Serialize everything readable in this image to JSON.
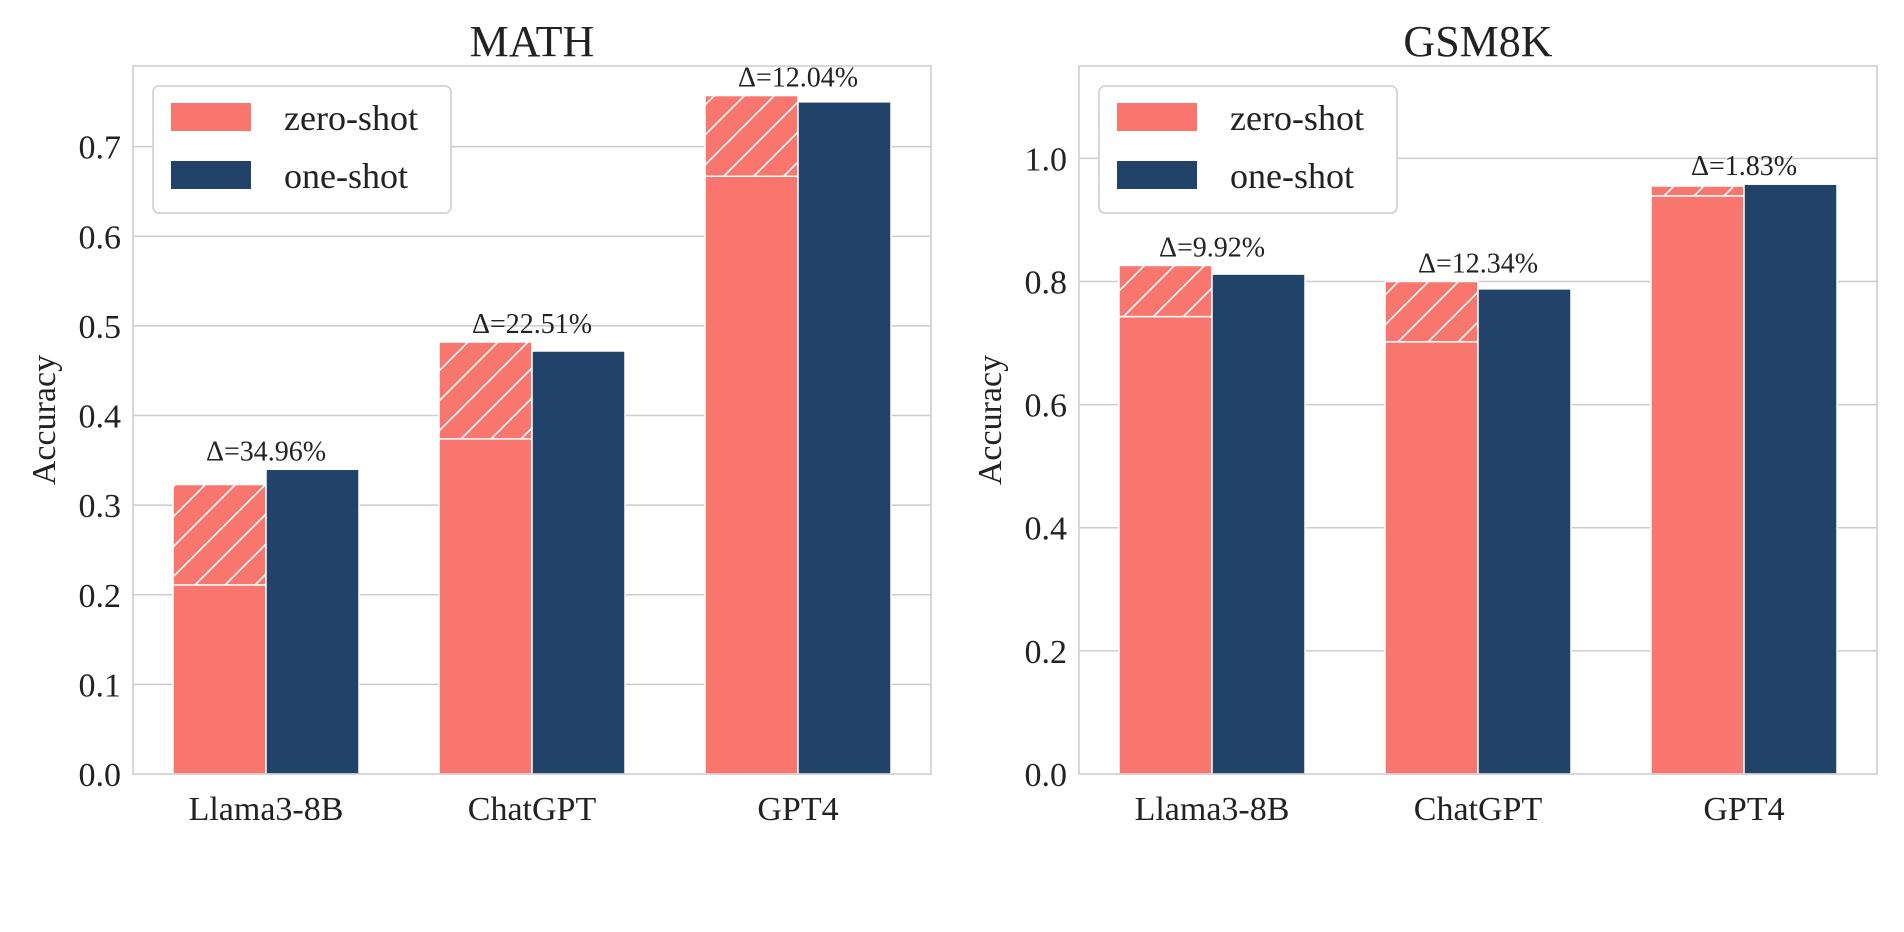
{
  "colors": {
    "zero_shot": "#f8766d",
    "one_shot": "#21436a",
    "grid": "#cccccc",
    "frame": "#cccccc"
  },
  "chart_data": [
    {
      "type": "bar",
      "title": "MATH",
      "xlabel": "",
      "ylabel": "Accuracy",
      "ylim": [
        0,
        0.79
      ],
      "yticks": [
        0.0,
        0.1,
        0.2,
        0.3,
        0.4,
        0.5,
        0.6,
        0.7
      ],
      "ytick_labels": [
        "0.0",
        "0.1",
        "0.2",
        "0.3",
        "0.4",
        "0.5",
        "0.6",
        "0.7"
      ],
      "grid": true,
      "legend_position": "top-left",
      "categories": [
        "Llama3-8B",
        "ChatGPT",
        "GPT4"
      ],
      "series": [
        {
          "name": "zero-shot",
          "values": [
            0.323,
            0.482,
            0.757
          ],
          "hatched_from": [
            0.211,
            0.374,
            0.667
          ]
        },
        {
          "name": "one-shot",
          "values": [
            0.34,
            0.472,
            0.75
          ]
        }
      ],
      "annotations": [
        "Δ=34.96%",
        "Δ=22.51%",
        "Δ=12.04%"
      ]
    },
    {
      "type": "bar",
      "title": "GSM8K",
      "xlabel": "",
      "ylabel": "Accuracy",
      "ylim": [
        0,
        1.15
      ],
      "yticks": [
        0.0,
        0.2,
        0.4,
        0.6,
        0.8,
        1.0
      ],
      "ytick_labels": [
        "0.0",
        "0.2",
        "0.4",
        "0.6",
        "0.8",
        "1.0"
      ],
      "grid": true,
      "legend_position": "top-left",
      "categories": [
        "Llama3-8B",
        "ChatGPT",
        "GPT4"
      ],
      "series": [
        {
          "name": "zero-shot",
          "values": [
            0.826,
            0.8,
            0.955
          ],
          "hatched_from": [
            0.743,
            0.702,
            0.939
          ]
        },
        {
          "name": "one-shot",
          "values": [
            0.812,
            0.788,
            0.958
          ]
        }
      ],
      "annotations": [
        "Δ=9.92%",
        "Δ=12.34%",
        "Δ=1.83%"
      ]
    }
  ]
}
